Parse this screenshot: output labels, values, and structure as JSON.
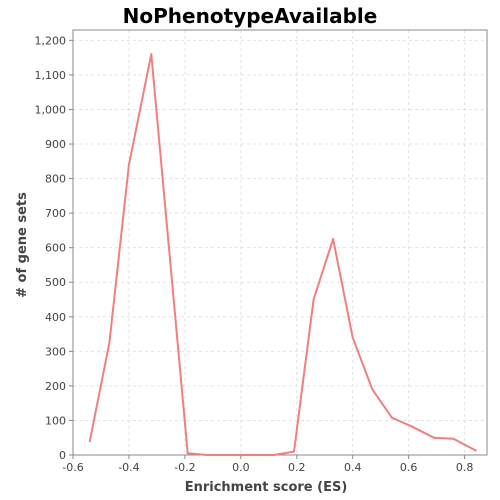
{
  "chart_data": {
    "type": "line",
    "title": "NoPhenotypeAvailable",
    "xlabel": "Enrichment score (ES)",
    "ylabel": "# of gene sets",
    "xlim": [
      -0.6,
      0.88
    ],
    "ylim": [
      0,
      1230
    ],
    "x_ticks": [
      -0.6,
      -0.4,
      -0.2,
      0.0,
      0.2,
      0.4,
      0.6,
      0.8
    ],
    "x_tick_labels": [
      "-0.6",
      "-0.4",
      "-0.2",
      "0.0",
      "0.2",
      "0.4",
      "0.6",
      "0.8"
    ],
    "y_ticks": [
      0,
      100,
      200,
      300,
      400,
      500,
      600,
      700,
      800,
      900,
      1000,
      1100,
      1200
    ],
    "y_tick_labels": [
      "0",
      "100",
      "200",
      "300",
      "400",
      "500",
      "600",
      "700",
      "800",
      "900",
      "1,000",
      "1,100",
      "1,200"
    ],
    "grid": true,
    "legend": "none",
    "series": [
      {
        "color": "#f07f7f",
        "x": [
          -0.54,
          -0.47,
          -0.4,
          -0.32,
          -0.19,
          -0.12,
          -0.06,
          0.01,
          0.07,
          0.12,
          0.19,
          0.26,
          0.33,
          0.4,
          0.47,
          0.54,
          0.61,
          0.69,
          0.76,
          0.84
        ],
        "y": [
          40,
          325,
          840,
          1160,
          5,
          0,
          0,
          0,
          0,
          0,
          10,
          450,
          625,
          340,
          190,
          108,
          83,
          50,
          47,
          13
        ]
      }
    ]
  }
}
